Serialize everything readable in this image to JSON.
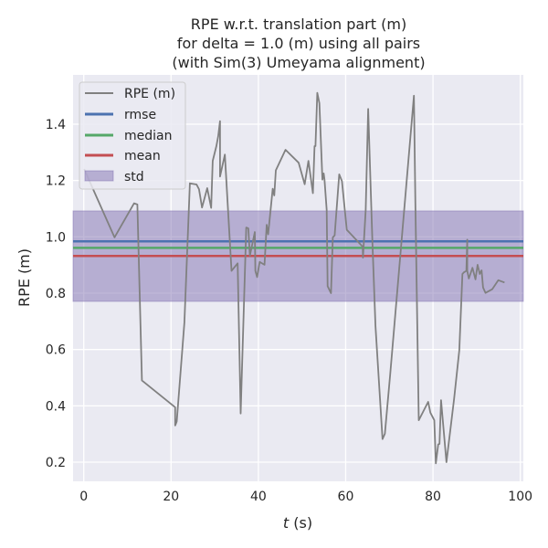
{
  "chart_data": {
    "type": "line",
    "title": [
      "RPE w.r.t. translation part (m)",
      "for delta = 1.0 (m) using all pairs",
      "(with Sim(3) Umeyama alignment)"
    ],
    "xlabel_italic": "t",
    "xlabel_rest": " (s)",
    "ylabel": "RPE (m)",
    "xlim": [
      -2.45,
      100.7
    ],
    "ylim": [
      0.132,
      1.575
    ],
    "xticks": [
      0,
      20,
      40,
      60,
      80,
      100
    ],
    "xtick_labels": [
      "0",
      "20",
      "40",
      "60",
      "80",
      "100"
    ],
    "yticks": [
      0.2,
      0.4,
      0.6,
      0.8,
      1.0,
      1.2,
      1.4
    ],
    "ytick_labels": [
      "0.2",
      "0.4",
      "0.6",
      "0.8",
      "1.0",
      "1.2",
      "1.4"
    ],
    "grid": true,
    "legend": {
      "placement": "top-left",
      "entries": [
        "RPE (m)",
        "rmse",
        "median",
        "mean",
        "std"
      ]
    },
    "colors": {
      "rpe": "#808080",
      "rmse": "#4c72b0",
      "median": "#55a868",
      "mean": "#c44e52",
      "std": "#8172b2",
      "background": "#eaeaf2"
    },
    "stats": {
      "rmse": 0.984,
      "median": 0.961,
      "mean": 0.932,
      "std_low": 0.771,
      "std_high": 1.092
    },
    "series": [
      {
        "name": "RPE (m)",
        "x": [
          0.1,
          2.1,
          7.04,
          11.52,
          12.28,
          13.33,
          20.95,
          20.95,
          21.29,
          23.05,
          24.3,
          25.83,
          26.4,
          27.09,
          28.28,
          29.19,
          29.54,
          30.38,
          30.8,
          31.22,
          31.22,
          32.33,
          33.86,
          35.26,
          35.95,
          37.21,
          37.71,
          38.05,
          39.18,
          39.31,
          39.72,
          40.29,
          41.4,
          41.9,
          42.24,
          43.29,
          43.64,
          44.0,
          46.22,
          49.24,
          50.62,
          51.46,
          52.5,
          52.86,
          53.07,
          53.49,
          53.97,
          54.68,
          54.96,
          55.16,
          55.65,
          55.86,
          56.63,
          57.05,
          57.47,
          58.52,
          59.15,
          60.26,
          63.9,
          63.96,
          64.59,
          65.16,
          66.12,
          66.83,
          68.43,
          68.99,
          70.19,
          75.63,
          75.97,
          76.74,
          78.9,
          79.41,
          80.31,
          80.66,
          81.21,
          81.5,
          81.84,
          83.09,
          84.85,
          86.03,
          86.74,
          87.07,
          87.64,
          87.85,
          87.85,
          88.21,
          89.04,
          89.73,
          90.22,
          90.72,
          91.14,
          91.47,
          92.04,
          93.57,
          94.97,
          96.38
        ],
        "y": [
          1.241,
          1.171,
          0.998,
          1.119,
          1.115,
          0.49,
          0.395,
          0.33,
          0.344,
          0.696,
          1.19,
          1.186,
          1.169,
          1.104,
          1.173,
          1.103,
          1.27,
          1.322,
          1.357,
          1.411,
          1.214,
          1.292,
          0.879,
          0.906,
          0.373,
          1.033,
          1.03,
          0.933,
          1.017,
          0.879,
          0.857,
          0.911,
          0.901,
          1.043,
          1.009,
          1.171,
          1.147,
          1.236,
          1.309,
          1.263,
          1.187,
          1.27,
          1.155,
          1.322,
          1.322,
          1.511,
          1.474,
          1.203,
          1.225,
          1.203,
          1.095,
          0.825,
          0.8,
          0.998,
          1.005,
          1.222,
          1.198,
          1.025,
          0.965,
          0.926,
          1.095,
          1.454,
          0.986,
          0.684,
          0.282,
          0.301,
          0.511,
          1.501,
          1.117,
          0.349,
          0.414,
          0.376,
          0.349,
          0.196,
          0.263,
          0.265,
          0.42,
          0.2,
          0.425,
          0.598,
          0.868,
          0.874,
          0.879,
          0.99,
          0.879,
          0.852,
          0.89,
          0.849,
          0.901,
          0.868,
          0.881,
          0.82,
          0.801,
          0.814,
          0.846,
          0.838
        ]
      }
    ]
  }
}
